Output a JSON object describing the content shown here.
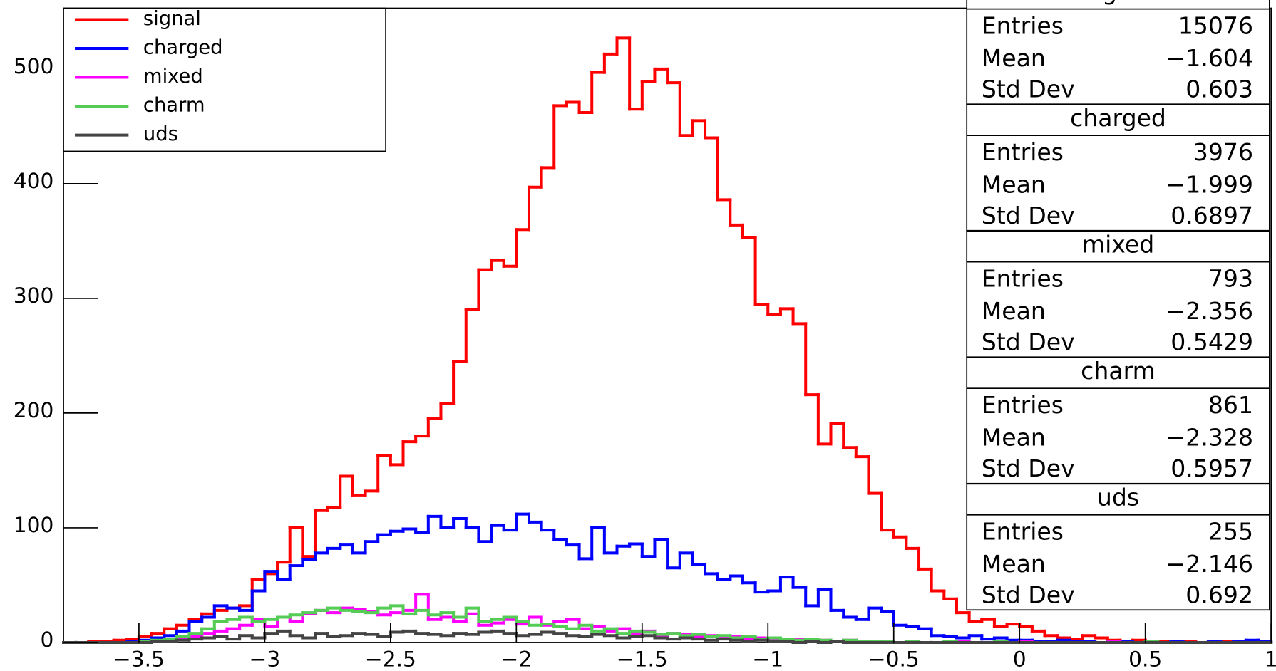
{
  "chart_data": {
    "type": "histogram",
    "bins": [
      -3.8,
      -3.75,
      -3.7,
      -3.65,
      -3.6,
      -3.55,
      -3.5,
      -3.45,
      -3.4,
      -3.35,
      -3.3,
      -3.25,
      -3.2,
      -3.15,
      -3.1,
      -3.05,
      -3,
      -2.95,
      -2.9,
      -2.85,
      -2.8,
      -2.75,
      -2.7,
      -2.65,
      -2.6,
      -2.55,
      -2.5,
      -2.45,
      -2.4,
      -2.35,
      -2.3,
      -2.25,
      -2.2,
      -2.15,
      -2.1,
      -2.05,
      -2,
      -1.95,
      -1.9,
      -1.85,
      -1.8,
      -1.75,
      -1.7,
      -1.65,
      -1.6,
      -1.55,
      -1.5,
      -1.45,
      -1.4,
      -1.35,
      -1.3,
      -1.25,
      -1.2,
      -1.15,
      -1.1,
      -1.05,
      -1,
      -0.95,
      -0.9,
      -0.85,
      -0.8,
      -0.75,
      -0.7,
      -0.65,
      -0.6,
      -0.55,
      -0.5,
      -0.45,
      -0.4,
      -0.35,
      -0.3,
      -0.25,
      -0.2,
      -0.15,
      -0.1,
      -0.05,
      0,
      0.05,
      0.1,
      0.15,
      0.2,
      0.25,
      0.3,
      0.35,
      0.4,
      0.45,
      0.5,
      0.55,
      0.6,
      0.65,
      0.7,
      0.75,
      0.8,
      0.85,
      0.9,
      0.95,
      1
    ],
    "series": [
      {
        "name": "signal",
        "color": "#ff0000",
        "values": [
          0,
          0,
          1,
          1,
          2,
          3,
          5,
          8,
          12,
          15,
          20,
          25,
          28,
          30,
          32,
          55,
          60,
          70,
          100,
          75,
          115,
          118,
          145,
          128,
          132,
          163,
          155,
          175,
          180,
          195,
          208,
          245,
          290,
          325,
          333,
          328,
          360,
          397,
          414,
          468,
          471,
          462,
          497,
          513,
          527,
          465,
          489,
          500,
          488,
          442,
          455,
          440,
          386,
          364,
          353,
          295,
          286,
          291,
          278,
          216,
          173,
          191,
          170,
          162,
          130,
          98,
          92,
          82,
          64,
          45,
          38,
          26,
          18,
          20,
          14,
          16,
          14,
          10,
          6,
          4,
          3,
          6,
          4,
          2,
          1,
          2,
          1,
          1,
          0,
          1,
          0,
          0,
          1,
          0,
          0,
          0
        ]
      },
      {
        "name": "charged",
        "color": "#0000ff",
        "values": [
          0,
          0,
          0,
          0,
          0,
          1,
          2,
          4,
          6,
          10,
          18,
          22,
          32,
          30,
          28,
          45,
          62,
          55,
          67,
          72,
          78,
          82,
          85,
          78,
          88,
          94,
          97,
          99,
          96,
          110,
          100,
          108,
          100,
          88,
          102,
          98,
          112,
          105,
          98,
          90,
          85,
          73,
          100,
          78,
          84,
          86,
          75,
          90,
          65,
          78,
          68,
          60,
          55,
          58,
          52,
          44,
          45,
          57,
          48,
          32,
          46,
          28,
          22,
          20,
          30,
          27,
          15,
          14,
          12,
          6,
          5,
          4,
          6,
          3,
          4,
          2,
          2,
          1,
          1,
          2,
          1,
          1,
          0,
          1,
          1,
          0,
          1,
          0,
          1,
          0,
          0,
          1,
          0,
          1,
          2,
          1
        ]
      },
      {
        "name": "mixed",
        "color": "#ff00ff",
        "values": [
          0,
          0,
          0,
          0,
          0,
          0,
          1,
          1,
          2,
          3,
          5,
          8,
          10,
          12,
          15,
          20,
          14,
          22,
          18,
          25,
          28,
          26,
          30,
          29,
          27,
          24,
          26,
          28,
          42,
          20,
          22,
          18,
          25,
          15,
          17,
          20,
          16,
          22,
          15,
          18,
          20,
          12,
          14,
          10,
          12,
          8,
          10,
          6,
          8,
          7,
          5,
          6,
          4,
          5,
          3,
          4,
          3,
          2,
          3,
          2,
          2,
          1,
          2,
          1,
          1,
          1,
          0,
          1,
          0,
          0,
          0,
          1,
          0,
          0,
          0,
          0,
          1,
          0,
          0,
          0,
          0,
          0,
          0,
          1,
          0,
          0,
          0,
          0,
          0,
          0,
          0,
          0,
          0,
          0,
          0,
          0
        ]
      },
      {
        "name": "charm",
        "color": "#55cc55",
        "values": [
          0,
          0,
          0,
          0,
          0,
          0,
          1,
          2,
          3,
          5,
          8,
          12,
          18,
          20,
          22,
          18,
          20,
          22,
          24,
          26,
          28,
          30,
          28,
          27,
          26,
          30,
          32,
          25,
          28,
          24,
          26,
          22,
          30,
          18,
          20,
          22,
          18,
          15,
          16,
          14,
          12,
          15,
          10,
          12,
          8,
          10,
          9,
          7,
          8,
          6,
          7,
          5,
          6,
          4,
          5,
          3,
          4,
          3,
          2,
          3,
          2,
          1,
          2,
          1,
          1,
          1,
          0,
          1,
          0,
          0,
          1,
          0,
          0,
          0,
          1,
          0,
          0,
          0,
          0,
          0,
          0,
          0,
          0,
          0,
          0,
          0,
          1,
          0,
          0,
          0,
          0,
          0,
          0,
          0,
          0,
          0
        ]
      },
      {
        "name": "uds",
        "color": "#444444",
        "values": [
          0,
          0,
          0,
          0,
          0,
          0,
          0,
          1,
          1,
          2,
          3,
          4,
          5,
          3,
          6,
          4,
          8,
          10,
          6,
          4,
          8,
          5,
          6,
          8,
          7,
          5,
          9,
          10,
          8,
          7,
          6,
          8,
          7,
          9,
          10,
          8,
          6,
          7,
          9,
          8,
          6,
          5,
          7,
          6,
          4,
          5,
          6,
          4,
          3,
          4,
          3,
          2,
          3,
          2,
          1,
          2,
          1,
          1,
          0,
          1,
          0,
          1,
          0,
          0,
          0,
          0,
          0,
          0,
          0,
          0,
          0,
          0,
          0,
          0,
          0,
          0,
          0,
          0,
          0,
          0,
          0,
          0,
          0,
          0,
          0,
          0,
          0,
          0,
          0,
          0,
          0,
          0,
          0,
          0,
          0,
          0
        ]
      }
    ],
    "xlim": [
      -3.8,
      1
    ],
    "ylim": [
      0,
      553
    ],
    "xticks": [
      {
        "value": -3.5,
        "label": "−3.5"
      },
      {
        "value": -3,
        "label": "−3"
      },
      {
        "value": -2.5,
        "label": "−2.5"
      },
      {
        "value": -2,
        "label": "−2"
      },
      {
        "value": -1.5,
        "label": "−1.5"
      },
      {
        "value": -1,
        "label": "−1"
      },
      {
        "value": -0.5,
        "label": "−0.5"
      },
      0,
      0.5,
      1
    ],
    "yticks": [
      0,
      100,
      200,
      300,
      400,
      500
    ],
    "legend": "top-left",
    "stats": [
      {
        "title": "signal",
        "rows": [
          [
            "Entries",
            "15076"
          ],
          [
            "Mean",
            "−1.604"
          ],
          [
            "Std Dev",
            "0.603"
          ]
        ]
      },
      {
        "title": "charged",
        "rows": [
          [
            "Entries",
            "3976"
          ],
          [
            "Mean",
            "−1.999"
          ],
          [
            "Std Dev",
            "0.6897"
          ]
        ]
      },
      {
        "title": "mixed",
        "rows": [
          [
            "Entries",
            "793"
          ],
          [
            "Mean",
            "−2.356"
          ],
          [
            "Std Dev",
            "0.5429"
          ]
        ]
      },
      {
        "title": "charm",
        "rows": [
          [
            "Entries",
            "861"
          ],
          [
            "Mean",
            "−2.328"
          ],
          [
            "Std Dev",
            "0.5957"
          ]
        ]
      },
      {
        "title": "uds",
        "rows": [
          [
            "Entries",
            "255"
          ],
          [
            "Mean",
            "−2.146"
          ],
          [
            "Std Dev",
            "0.692"
          ]
        ]
      }
    ]
  }
}
